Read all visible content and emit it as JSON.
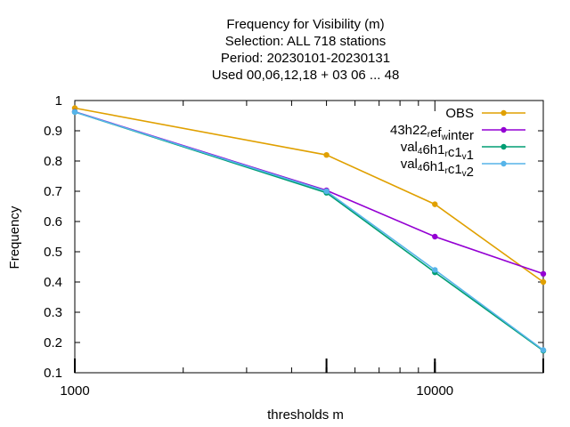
{
  "chart_data": {
    "type": "line",
    "title_lines": [
      "Frequency  for Visibility (m)",
      "Selection: ALL    718 stations",
      "Period: 20230101-20230131",
      "Used  00,06,12,18  + 03 06 ... 48"
    ],
    "xlabel": "thresholds m",
    "ylabel": "Frequency",
    "x_scale": "log",
    "xlim": [
      1000,
      20000
    ],
    "ylim": [
      0.1,
      1.0
    ],
    "x_ticks": [
      {
        "value": 1000,
        "label": "1000"
      },
      {
        "value": 10000,
        "label": "10000"
      }
    ],
    "y_ticks": [
      {
        "value": 0.1,
        "label": "0.1"
      },
      {
        "value": 0.2,
        "label": "0.2"
      },
      {
        "value": 0.3,
        "label": "0.3"
      },
      {
        "value": 0.4,
        "label": "0.4"
      },
      {
        "value": 0.5,
        "label": "0.5"
      },
      {
        "value": 0.6,
        "label": "0.6"
      },
      {
        "value": 0.7,
        "label": "0.7"
      },
      {
        "value": 0.8,
        "label": "0.8"
      },
      {
        "value": 0.9,
        "label": "0.9"
      },
      {
        "value": 1.0,
        "label": "1"
      }
    ],
    "x": [
      1000,
      5000,
      10000,
      20000
    ],
    "legend_position": "top-right",
    "series": [
      {
        "legend": {
          "main": "OBS",
          "parts": []
        },
        "color": "#e0a000",
        "values": [
          0.975,
          0.82,
          0.657,
          0.4
        ]
      },
      {
        "legend": {
          "main": "",
          "parts": [
            [
              "43h22",
              ""
            ],
            [
              "",
              "r"
            ],
            [
              "ef",
              ""
            ],
            [
              "",
              "w"
            ],
            [
              "inter",
              ""
            ]
          ]
        },
        "color": "#9400d3",
        "values": [
          0.963,
          0.703,
          0.55,
          0.427
        ]
      },
      {
        "legend": {
          "main": "",
          "parts": [
            [
              "val",
              ""
            ],
            [
              "",
              "4"
            ],
            [
              "6h1",
              ""
            ],
            [
              "",
              "r"
            ],
            [
              "c1",
              ""
            ],
            [
              "",
              "v"
            ],
            [
              "1",
              ""
            ]
          ]
        },
        "color": "#009e73",
        "values": [
          0.962,
          0.695,
          0.432,
          0.173
        ]
      },
      {
        "legend": {
          "main": "",
          "parts": [
            [
              "val",
              ""
            ],
            [
              "",
              "4"
            ],
            [
              "6h1",
              ""
            ],
            [
              "",
              "r"
            ],
            [
              "c1",
              ""
            ],
            [
              "",
              "v"
            ],
            [
              "2",
              ""
            ]
          ]
        },
        "color": "#56b4e9",
        "values": [
          0.962,
          0.7,
          0.44,
          0.175
        ]
      }
    ]
  }
}
